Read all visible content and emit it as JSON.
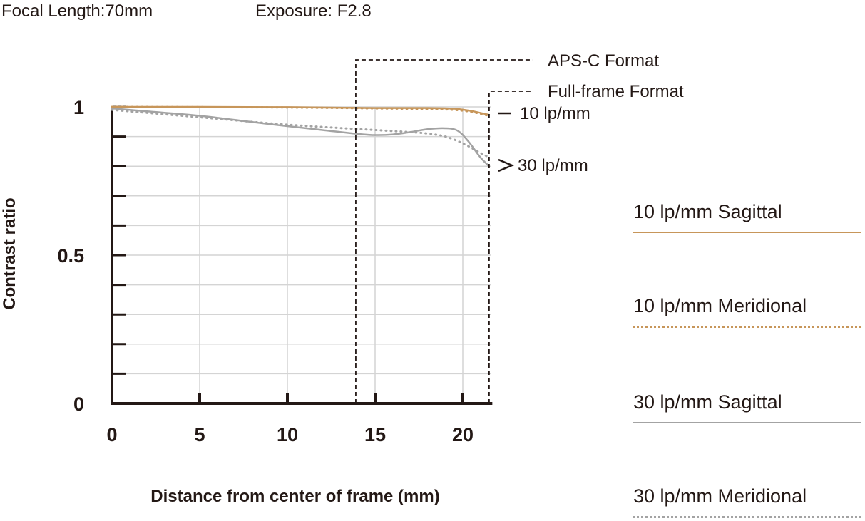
{
  "header": {
    "focal_length": "Focal Length:70mm",
    "exposure": "Exposure: F2.8"
  },
  "chart_data": {
    "type": "line",
    "xlabel": "Distance from center of frame (mm)",
    "ylabel": "Contrast ratio",
    "xlim": [
      0,
      21.6
    ],
    "ylim": [
      0,
      1
    ],
    "x_ticks": [
      0,
      5,
      10,
      15,
      20
    ],
    "y_ticks": [
      0,
      0.5,
      1
    ],
    "grid": true,
    "format_markers": [
      {
        "label": "APS-C Format",
        "x": 13.9
      },
      {
        "label": "Full-frame Format",
        "x": 21.5
      }
    ],
    "annotations": [
      "10 lp/mm",
      "30 lp/mm"
    ],
    "colors": {
      "lp10": "#c7965a",
      "lp30": "#a3a3a3",
      "axis": "#231815",
      "grid": "#d4d4d4"
    },
    "series": [
      {
        "name": "10 lp/mm Sagittal",
        "style": "solid",
        "color": "#c7965a",
        "x": [
          0,
          5,
          10,
          15,
          18,
          19.5,
          20.5,
          21.5
        ],
        "y": [
          1.0,
          1.0,
          0.999,
          0.996,
          0.996,
          0.994,
          0.986,
          0.973
        ]
      },
      {
        "name": "10 lp/mm Meridional",
        "style": "dotted",
        "color": "#c7965a",
        "x": [
          0,
          5,
          10,
          15,
          18,
          19.5,
          20.5,
          21.5
        ],
        "y": [
          1.0,
          0.999,
          0.998,
          0.995,
          0.993,
          0.99,
          0.983,
          0.97
        ]
      },
      {
        "name": "30 lp/mm Sagittal",
        "style": "solid",
        "color": "#a3a3a3",
        "x": [
          0,
          2,
          5,
          8,
          10,
          12,
          14,
          15,
          16,
          17,
          18,
          19,
          19.7,
          20.3,
          21,
          21.5
        ],
        "y": [
          0.995,
          0.985,
          0.97,
          0.949,
          0.935,
          0.922,
          0.909,
          0.905,
          0.907,
          0.915,
          0.925,
          0.928,
          0.92,
          0.885,
          0.83,
          0.8
        ]
      },
      {
        "name": "30 lp/mm Meridional",
        "style": "dotted",
        "color": "#a3a3a3",
        "x": [
          0,
          5,
          10,
          15,
          17,
          18,
          19,
          20,
          21,
          21.5
        ],
        "y": [
          0.99,
          0.965,
          0.94,
          0.922,
          0.915,
          0.91,
          0.9,
          0.877,
          0.845,
          0.83
        ]
      }
    ]
  }
}
